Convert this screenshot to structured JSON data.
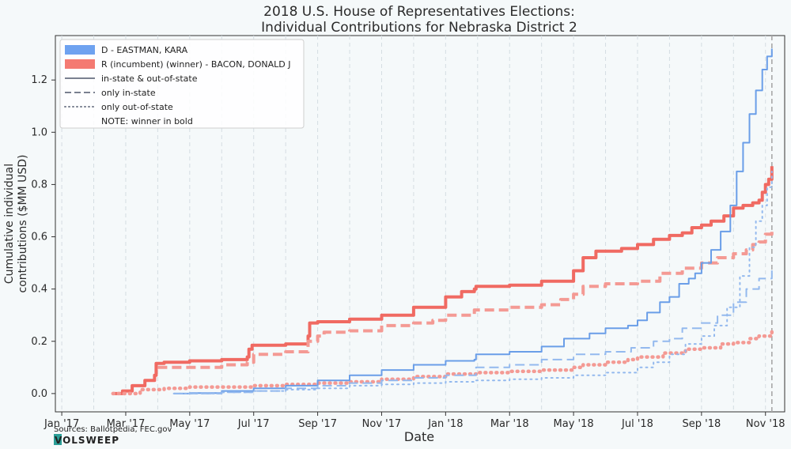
{
  "chart_data": {
    "type": "line",
    "title_line1": "2018 U.S. House of Representatives Elections:",
    "title_line2": "Individual Contributions for Nebraska District 2",
    "xlabel": "Date",
    "ylabel_line1": "Cumulative individual",
    "ylabel_line2": "contributions ($MM USD)",
    "x_ticks": [
      "Jan '17",
      "Mar '17",
      "May '17",
      "Jul '17",
      "Sep '17",
      "Nov '17",
      "Jan '18",
      "Mar '18",
      "May '18",
      "Jul '18",
      "Sep '18",
      "Nov '18"
    ],
    "y_ticks": [
      "0.0",
      "0.2",
      "0.4",
      "0.6",
      "0.8",
      "1.0",
      "1.2"
    ],
    "ylim": [
      -0.07,
      1.37
    ],
    "xlim_months": [
      -0.2,
      22.6
    ],
    "election_line_month": 22.2,
    "grid": "vertical dashed",
    "legend": {
      "position": "top-left",
      "items": [
        {
          "label": "D - EASTMAN, KARA",
          "kind": "patch",
          "color": "#6ea2f0"
        },
        {
          "label": "R (incumbent) (winner) - BACON, DONALD J",
          "kind": "patch",
          "color": "#f47a72"
        },
        {
          "label": "in-state & out-of-state",
          "kind": "solid",
          "color": "#7a8090"
        },
        {
          "label": "only in-state",
          "kind": "dashed",
          "color": "#7a8090"
        },
        {
          "label": "only out-of-state",
          "kind": "dotted",
          "color": "#7a8090"
        },
        {
          "label": "NOTE: winner in bold",
          "kind": "none",
          "color": ""
        }
      ]
    },
    "series": [
      {
        "name": "BACON, DONALD J",
        "style": "solid",
        "color": "#f06a62",
        "bold": true,
        "points": [
          [
            1.6,
            0.0
          ],
          [
            1.9,
            0.01
          ],
          [
            2.2,
            0.03
          ],
          [
            2.6,
            0.05
          ],
          [
            2.9,
            0.07
          ],
          [
            2.95,
            0.115
          ],
          [
            3.2,
            0.12
          ],
          [
            4.0,
            0.125
          ],
          [
            5.0,
            0.13
          ],
          [
            5.8,
            0.14
          ],
          [
            5.85,
            0.17
          ],
          [
            5.95,
            0.185
          ],
          [
            7.0,
            0.19
          ],
          [
            7.7,
            0.22
          ],
          [
            7.75,
            0.27
          ],
          [
            8.0,
            0.275
          ],
          [
            9.0,
            0.285
          ],
          [
            10.0,
            0.3
          ],
          [
            11.0,
            0.33
          ],
          [
            12.0,
            0.37
          ],
          [
            12.5,
            0.39
          ],
          [
            12.9,
            0.4
          ],
          [
            12.95,
            0.41
          ],
          [
            14.0,
            0.415
          ],
          [
            15.0,
            0.43
          ],
          [
            16.0,
            0.47
          ],
          [
            16.3,
            0.52
          ],
          [
            16.7,
            0.545
          ],
          [
            17.5,
            0.555
          ],
          [
            18.0,
            0.57
          ],
          [
            18.5,
            0.59
          ],
          [
            19.0,
            0.605
          ],
          [
            19.4,
            0.615
          ],
          [
            19.7,
            0.635
          ],
          [
            20.0,
            0.645
          ],
          [
            20.3,
            0.66
          ],
          [
            20.7,
            0.68
          ],
          [
            21.0,
            0.71
          ],
          [
            21.3,
            0.72
          ],
          [
            21.6,
            0.73
          ],
          [
            21.8,
            0.74
          ],
          [
            21.9,
            0.77
          ],
          [
            22.0,
            0.8
          ],
          [
            22.1,
            0.82
          ],
          [
            22.2,
            0.87
          ]
        ]
      },
      {
        "name": "BACON, DONALD J",
        "style": "dashed",
        "color": "#f49a94",
        "bold": true,
        "points": [
          [
            3.0,
            0.1
          ],
          [
            4.0,
            0.1
          ],
          [
            5.0,
            0.11
          ],
          [
            5.8,
            0.12
          ],
          [
            6.0,
            0.15
          ],
          [
            7.0,
            0.16
          ],
          [
            7.7,
            0.2
          ],
          [
            8.0,
            0.22
          ],
          [
            8.2,
            0.235
          ],
          [
            9.0,
            0.24
          ],
          [
            10.0,
            0.26
          ],
          [
            11.0,
            0.27
          ],
          [
            11.6,
            0.28
          ],
          [
            12.0,
            0.3
          ],
          [
            12.9,
            0.32
          ],
          [
            14.0,
            0.33
          ],
          [
            15.0,
            0.34
          ],
          [
            15.6,
            0.36
          ],
          [
            16.0,
            0.38
          ],
          [
            16.3,
            0.41
          ],
          [
            17.0,
            0.42
          ],
          [
            18.0,
            0.43
          ],
          [
            18.7,
            0.46
          ],
          [
            19.4,
            0.48
          ],
          [
            20.0,
            0.5
          ],
          [
            20.5,
            0.52
          ],
          [
            21.0,
            0.535
          ],
          [
            21.4,
            0.55
          ],
          [
            21.6,
            0.57
          ],
          [
            21.8,
            0.58
          ],
          [
            22.0,
            0.61
          ],
          [
            22.2,
            0.63
          ]
        ]
      },
      {
        "name": "BACON, DONALD J",
        "style": "dotted",
        "color": "#f49a94",
        "bold": true,
        "points": [
          [
            1.6,
            0.0
          ],
          [
            2.4,
            0.0
          ],
          [
            2.45,
            0.015
          ],
          [
            3.2,
            0.02
          ],
          [
            4.0,
            0.025
          ],
          [
            5.0,
            0.025
          ],
          [
            6.0,
            0.03
          ],
          [
            7.0,
            0.035
          ],
          [
            8.0,
            0.04
          ],
          [
            9.0,
            0.045
          ],
          [
            10.0,
            0.055
          ],
          [
            11.0,
            0.065
          ],
          [
            12.0,
            0.075
          ],
          [
            13.0,
            0.08
          ],
          [
            14.0,
            0.085
          ],
          [
            15.0,
            0.09
          ],
          [
            16.0,
            0.1
          ],
          [
            16.3,
            0.11
          ],
          [
            17.0,
            0.12
          ],
          [
            17.7,
            0.13
          ],
          [
            18.0,
            0.14
          ],
          [
            18.8,
            0.155
          ],
          [
            19.5,
            0.17
          ],
          [
            20.0,
            0.175
          ],
          [
            20.6,
            0.19
          ],
          [
            21.0,
            0.195
          ],
          [
            21.5,
            0.21
          ],
          [
            21.8,
            0.22
          ],
          [
            22.2,
            0.245
          ]
        ]
      },
      {
        "name": "EASTMAN, KARA",
        "style": "solid",
        "color": "#6a9ee8",
        "bold": false,
        "points": [
          [
            3.5,
            0.0
          ],
          [
            4.0,
            0.002
          ],
          [
            5.0,
            0.01
          ],
          [
            6.0,
            0.02
          ],
          [
            7.0,
            0.03
          ],
          [
            8.0,
            0.05
          ],
          [
            9.0,
            0.07
          ],
          [
            10.0,
            0.09
          ],
          [
            11.0,
            0.11
          ],
          [
            12.0,
            0.125
          ],
          [
            12.9,
            0.13
          ],
          [
            12.95,
            0.15
          ],
          [
            13.7,
            0.15
          ],
          [
            14.0,
            0.16
          ],
          [
            15.0,
            0.18
          ],
          [
            15.7,
            0.21
          ],
          [
            16.5,
            0.23
          ],
          [
            17.0,
            0.25
          ],
          [
            17.7,
            0.26
          ],
          [
            18.0,
            0.28
          ],
          [
            18.3,
            0.31
          ],
          [
            18.7,
            0.35
          ],
          [
            19.0,
            0.37
          ],
          [
            19.3,
            0.42
          ],
          [
            19.6,
            0.44
          ],
          [
            19.8,
            0.46
          ],
          [
            20.0,
            0.5
          ],
          [
            20.3,
            0.55
          ],
          [
            20.6,
            0.62
          ],
          [
            20.9,
            0.72
          ],
          [
            21.1,
            0.85
          ],
          [
            21.3,
            0.96
          ],
          [
            21.5,
            1.07
          ],
          [
            21.7,
            1.16
          ],
          [
            21.9,
            1.24
          ],
          [
            22.05,
            1.29
          ],
          [
            22.2,
            1.32
          ]
        ]
      },
      {
        "name": "EASTMAN, KARA",
        "style": "dashed",
        "color": "#93b9ee",
        "bold": false,
        "points": [
          [
            3.5,
            0.0
          ],
          [
            5.0,
            0.005
          ],
          [
            6.0,
            0.01
          ],
          [
            7.0,
            0.02
          ],
          [
            8.0,
            0.03
          ],
          [
            9.0,
            0.04
          ],
          [
            10.0,
            0.05
          ],
          [
            11.0,
            0.06
          ],
          [
            12.0,
            0.07
          ],
          [
            12.95,
            0.1
          ],
          [
            14.0,
            0.11
          ],
          [
            15.0,
            0.13
          ],
          [
            16.0,
            0.15
          ],
          [
            17.0,
            0.16
          ],
          [
            17.8,
            0.175
          ],
          [
            18.5,
            0.2
          ],
          [
            19.0,
            0.21
          ],
          [
            19.4,
            0.25
          ],
          [
            20.0,
            0.27
          ],
          [
            20.5,
            0.3
          ],
          [
            21.0,
            0.35
          ],
          [
            21.4,
            0.4
          ],
          [
            21.8,
            0.44
          ],
          [
            22.2,
            0.48
          ]
        ]
      },
      {
        "name": "EASTMAN, KARA",
        "style": "dotted",
        "color": "#93b9ee",
        "bold": false,
        "points": [
          [
            3.5,
            0.0
          ],
          [
            5.0,
            0.005
          ],
          [
            6.0,
            0.01
          ],
          [
            7.0,
            0.015
          ],
          [
            8.0,
            0.02
          ],
          [
            9.0,
            0.03
          ],
          [
            10.0,
            0.035
          ],
          [
            11.0,
            0.04
          ],
          [
            12.0,
            0.045
          ],
          [
            12.95,
            0.05
          ],
          [
            14.0,
            0.055
          ],
          [
            15.0,
            0.06
          ],
          [
            16.0,
            0.07
          ],
          [
            17.0,
            0.08
          ],
          [
            18.0,
            0.1
          ],
          [
            18.5,
            0.12
          ],
          [
            19.0,
            0.15
          ],
          [
            19.5,
            0.19
          ],
          [
            20.0,
            0.22
          ],
          [
            20.4,
            0.26
          ],
          [
            20.8,
            0.33
          ],
          [
            21.2,
            0.45
          ],
          [
            21.5,
            0.56
          ],
          [
            21.7,
            0.66
          ],
          [
            21.9,
            0.72
          ],
          [
            22.05,
            0.79
          ],
          [
            22.2,
            0.85
          ]
        ]
      }
    ]
  },
  "footer": {
    "source": "Sources: Ballotpedia, FEC.gov",
    "brand": "VOLSWEEP"
  }
}
